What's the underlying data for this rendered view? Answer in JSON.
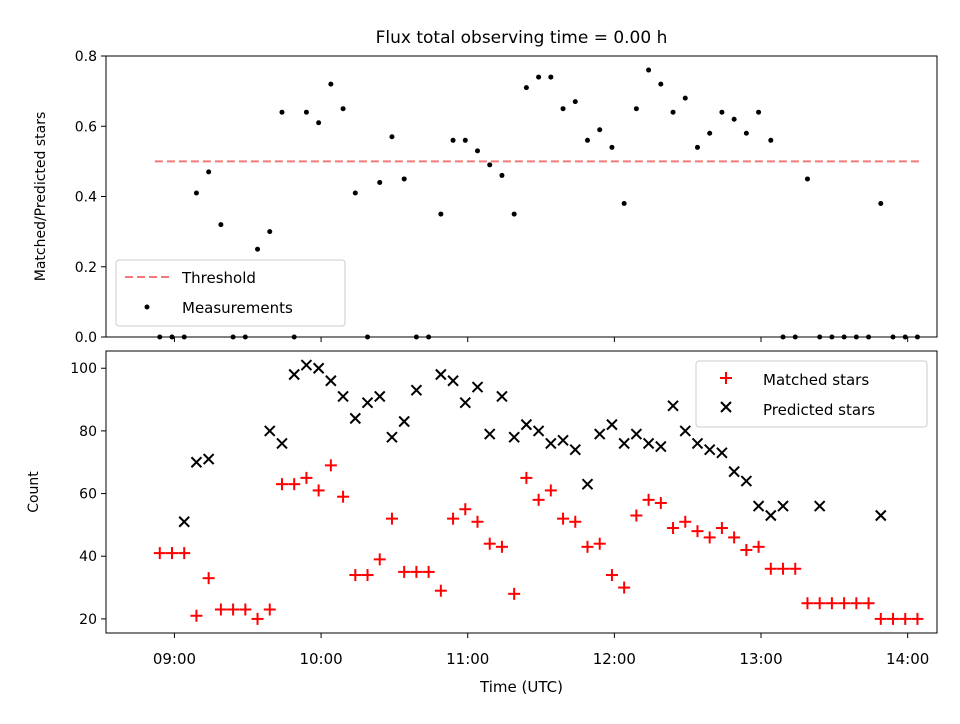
{
  "chart_data": [
    {
      "type": "scatter",
      "title": "Flux total observing time = 0.00 h",
      "xlabel": "",
      "ylabel": "Matched/Predicted stars",
      "xlim": [
        "08:32",
        "14:12"
      ],
      "ylim": [
        0,
        0.8
      ],
      "yticks": [
        0,
        0.2,
        0.4,
        0.6,
        0.8
      ],
      "ytick_labels": [
        "0.0",
        "0.2",
        "0.4",
        "0.6",
        "0.8"
      ],
      "legend": "lower-left",
      "threshold": {
        "name": "Threshold",
        "value": 0.5,
        "x_range": [
          "08:52",
          "14:05"
        ],
        "color": "#f47a7a"
      },
      "series": [
        {
          "name": "Measurements",
          "color": "#000000",
          "x": [
            "08:54",
            "08:59",
            "09:04",
            "09:09",
            "09:14",
            "09:19",
            "09:24",
            "09:29",
            "09:34",
            "09:39",
            "09:44",
            "09:49",
            "09:54",
            "09:59",
            "10:04",
            "10:09",
            "10:14",
            "10:19",
            "10:24",
            "10:29",
            "10:34",
            "10:39",
            "10:44",
            "10:49",
            "10:54",
            "10:59",
            "11:04",
            "11:09",
            "11:14",
            "11:19",
            "11:24",
            "11:29",
            "11:34",
            "11:39",
            "11:44",
            "11:49",
            "11:54",
            "11:59",
            "12:04",
            "12:09",
            "12:14",
            "12:19",
            "12:24",
            "12:29",
            "12:34",
            "12:39",
            "12:44",
            "12:49",
            "12:54",
            "12:59",
            "13:04",
            "13:09",
            "13:14",
            "13:19",
            "13:24",
            "13:29",
            "13:34",
            "13:39",
            "13:44",
            "13:49",
            "13:54",
            "13:59",
            "14:04"
          ],
          "y": [
            0,
            0,
            0,
            0.41,
            0.47,
            0.32,
            0,
            0,
            0.25,
            0.3,
            0.64,
            0,
            0.64,
            0.61,
            0.72,
            0.65,
            0.41,
            0,
            0.44,
            0.57,
            0.45,
            0,
            0,
            0.35,
            0.56,
            0.56,
            0.53,
            0.49,
            0.46,
            0.35,
            0.71,
            0.74,
            0.74,
            0.65,
            0.67,
            0.56,
            0.59,
            0.54,
            0.38,
            0.65,
            0.76,
            0.72,
            0.64,
            0.68,
            0.54,
            0.58,
            0.64,
            0.62,
            0.58,
            0.64,
            0.56,
            0,
            0,
            0.45,
            0,
            0,
            0,
            0,
            0,
            0.38,
            0,
            0,
            0
          ]
        }
      ]
    },
    {
      "type": "scatter",
      "title": "",
      "xlabel": "Time (UTC)",
      "ylabel": "Count",
      "xlim": [
        "08:32",
        "14:12"
      ],
      "ylim": [
        15.5,
        105.5
      ],
      "yticks": [
        20,
        40,
        60,
        80,
        100
      ],
      "ytick_labels": [
        "20",
        "40",
        "60",
        "80",
        "100"
      ],
      "xticks": [
        "09:00",
        "10:00",
        "11:00",
        "12:00",
        "13:00",
        "14:00"
      ],
      "legend": "upper-right",
      "series": [
        {
          "name": "Matched stars",
          "marker": "plus",
          "color": "#ff0000",
          "x": [
            "08:54",
            "08:59",
            "09:04",
            "09:09",
            "09:14",
            "09:19",
            "09:24",
            "09:29",
            "09:34",
            "09:39",
            "09:44",
            "09:49",
            "09:54",
            "09:59",
            "10:04",
            "10:09",
            "10:14",
            "10:19",
            "10:24",
            "10:29",
            "10:34",
            "10:39",
            "10:44",
            "10:49",
            "10:54",
            "10:59",
            "11:04",
            "11:09",
            "11:14",
            "11:19",
            "11:24",
            "11:29",
            "11:34",
            "11:39",
            "11:44",
            "11:49",
            "11:54",
            "11:59",
            "12:04",
            "12:09",
            "12:14",
            "12:19",
            "12:24",
            "12:29",
            "12:34",
            "12:39",
            "12:44",
            "12:49",
            "12:54",
            "12:59",
            "13:04",
            "13:09",
            "13:14",
            "13:19",
            "13:24",
            "13:29",
            "13:34",
            "13:39",
            "13:44",
            "13:49",
            "13:54",
            "13:59",
            "14:04"
          ],
          "y": [
            41,
            41,
            41,
            21,
            33,
            23,
            23,
            23,
            20,
            23,
            63,
            63,
            65,
            61,
            69,
            59,
            34,
            34,
            39,
            52,
            35,
            35,
            35,
            29,
            52,
            55,
            51,
            44,
            43,
            28,
            65,
            58,
            61,
            52,
            51,
            43,
            44,
            34,
            30,
            53,
            58,
            57,
            49,
            51,
            48,
            46,
            49,
            46,
            42,
            43,
            36,
            36,
            36,
            25,
            25,
            25,
            25,
            25,
            25,
            20,
            20,
            20,
            20
          ]
        },
        {
          "name": "Predicted stars",
          "marker": "x",
          "color": "#000000",
          "x": [
            "09:04",
            "09:09",
            "09:14",
            "09:39",
            "09:44",
            "09:49",
            "09:54",
            "09:59",
            "10:04",
            "10:09",
            "10:14",
            "10:19",
            "10:24",
            "10:29",
            "10:34",
            "10:39",
            "10:49",
            "10:54",
            "10:59",
            "11:04",
            "11:09",
            "11:14",
            "11:19",
            "11:24",
            "11:29",
            "11:34",
            "11:39",
            "11:44",
            "11:49",
            "11:54",
            "11:59",
            "12:04",
            "12:09",
            "12:14",
            "12:19",
            "12:24",
            "12:29",
            "12:34",
            "12:39",
            "12:44",
            "12:49",
            "12:54",
            "12:59",
            "13:04",
            "13:09",
            "13:24",
            "13:49"
          ],
          "y": [
            51,
            70,
            71,
            80,
            76,
            98,
            101,
            100,
            96,
            91,
            84,
            89,
            91,
            78,
            83,
            93,
            98,
            96,
            89,
            94,
            79,
            91,
            78,
            82,
            80,
            76,
            77,
            74,
            63,
            79,
            82,
            76,
            79,
            76,
            75,
            88,
            80,
            76,
            74,
            73,
            67,
            64,
            56,
            53,
            56,
            56,
            53
          ]
        }
      ]
    }
  ]
}
